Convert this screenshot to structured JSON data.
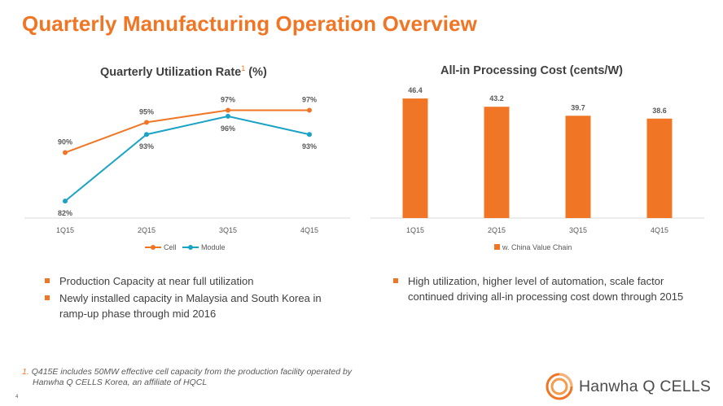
{
  "page": {
    "title": "Quarterly Manufacturing Operation Overview",
    "page_number": "4"
  },
  "colors": {
    "accent": "#f07524",
    "module": "#1ba3c6",
    "grid": "#d9d9d9",
    "text": "#404040"
  },
  "chart_data": [
    {
      "type": "line",
      "title": "Quarterly Utilization Rate",
      "title_superscript": "1",
      "title_unit": "(%)",
      "categories": [
        "1Q15",
        "2Q15",
        "3Q15",
        "4Q15"
      ],
      "series": [
        {
          "name": "Cell",
          "values": [
            90,
            95,
            97,
            97
          ],
          "labels": [
            "90%",
            "95%",
            "97%",
            "97%"
          ],
          "color": "#f07524"
        },
        {
          "name": "Module",
          "values": [
            82,
            93,
            96,
            93
          ],
          "labels": [
            "82%",
            "93%",
            "96%",
            "93%"
          ],
          "color": "#1ba3c6"
        }
      ],
      "ylim": [
        80,
        98
      ],
      "legend_position": "bottom",
      "grid": false
    },
    {
      "type": "bar",
      "title": "All-in Processing Cost (cents/W)",
      "categories": [
        "1Q15",
        "2Q15",
        "3Q15",
        "4Q15"
      ],
      "series": [
        {
          "name": "w. China Value Chain",
          "values": [
            46.4,
            43.2,
            39.7,
            38.6
          ],
          "labels": [
            "46.4",
            "43.2",
            "39.7",
            "38.6"
          ],
          "color": "#f07524"
        }
      ],
      "ylim": [
        0,
        48
      ],
      "legend_position": "bottom",
      "grid": false
    }
  ],
  "bullets_left": [
    "Production Capacity at near full utilization",
    "Newly installed capacity in Malaysia and South Korea in ramp-up phase through mid 2016"
  ],
  "bullets_right": [
    "High utilization, higher level of automation, scale factor continued driving all-in processing cost down through 2015"
  ],
  "footnote": {
    "number": "1.",
    "line1": "Q415E includes 50MW effective cell capacity from the production facility operated by",
    "line2": "Hanwha Q CELLS Korea, an affiliate of HQCL"
  },
  "logo": {
    "text": "Hanwha Q CELLS",
    "icon": "hanwha-logo-icon"
  }
}
